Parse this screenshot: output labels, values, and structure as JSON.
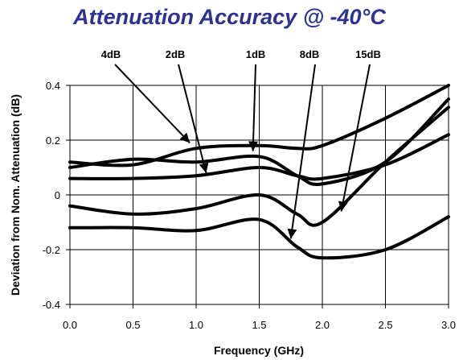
{
  "colors": {
    "title": "#2e3192",
    "series": "#000000",
    "grid": "#000000",
    "plot_bg": "#ffffff"
  },
  "chart_data": {
    "type": "line",
    "title": "Attenuation Accuracy @ -40°C",
    "xlabel": "Frequency (GHz)",
    "ylabel": "Deviation from Nom. Attenuation (dB)",
    "xlim": [
      0.0,
      3.0
    ],
    "ylim": [
      -0.4,
      0.4
    ],
    "x_ticks": [
      "0.0",
      "0.5",
      "1.0",
      "1.5",
      "2.0",
      "2.5",
      "3.0"
    ],
    "y_ticks": [
      "-0.4",
      "-0.2",
      "0",
      "0.2",
      "0.4"
    ],
    "grid": true,
    "legend": "none",
    "series": [
      {
        "name": "4dB",
        "points": [
          [
            0,
            0.12
          ],
          [
            0.5,
            0.11
          ],
          [
            1.0,
            0.17
          ],
          [
            1.5,
            0.18
          ],
          [
            1.8,
            0.17
          ],
          [
            2.0,
            0.18
          ],
          [
            2.5,
            0.28
          ],
          [
            3.0,
            0.4
          ]
        ]
      },
      {
        "name": "2dB",
        "points": [
          [
            0,
            0.06
          ],
          [
            0.5,
            0.06
          ],
          [
            1.0,
            0.07
          ],
          [
            1.5,
            0.1
          ],
          [
            1.8,
            0.07
          ],
          [
            2.0,
            0.06
          ],
          [
            2.5,
            0.11
          ],
          [
            3.0,
            0.22
          ]
        ]
      },
      {
        "name": "1dB",
        "points": [
          [
            0,
            0.1
          ],
          [
            0.5,
            0.13
          ],
          [
            1.0,
            0.12
          ],
          [
            1.5,
            0.14
          ],
          [
            1.8,
            0.07
          ],
          [
            2.0,
            0.04
          ],
          [
            2.5,
            0.12
          ],
          [
            3.0,
            0.35
          ]
        ]
      },
      {
        "name": "8dB",
        "points": [
          [
            0,
            -0.12
          ],
          [
            0.5,
            -0.12
          ],
          [
            1.0,
            -0.13
          ],
          [
            1.5,
            -0.09
          ],
          [
            1.8,
            -0.19
          ],
          [
            2.0,
            -0.23
          ],
          [
            2.5,
            -0.2
          ],
          [
            3.0,
            -0.08
          ]
        ]
      },
      {
        "name": "15dB",
        "points": [
          [
            0,
            -0.04
          ],
          [
            0.5,
            -0.07
          ],
          [
            1.0,
            -0.05
          ],
          [
            1.5,
            0.0
          ],
          [
            1.8,
            -0.07
          ],
          [
            2.0,
            -0.1
          ],
          [
            2.5,
            0.12
          ],
          [
            3.0,
            0.32
          ]
        ]
      }
    ],
    "annotations": [
      {
        "text": "4dB",
        "x": 0.95,
        "y": 0.19
      },
      {
        "text": "2dB",
        "x": 1.08,
        "y": 0.08
      },
      {
        "text": "1dB",
        "x": 1.45,
        "y": 0.16
      },
      {
        "text": "8dB",
        "x": 1.75,
        "y": -0.16
      },
      {
        "text": "15dB",
        "x": 2.15,
        "y": -0.06
      }
    ]
  }
}
